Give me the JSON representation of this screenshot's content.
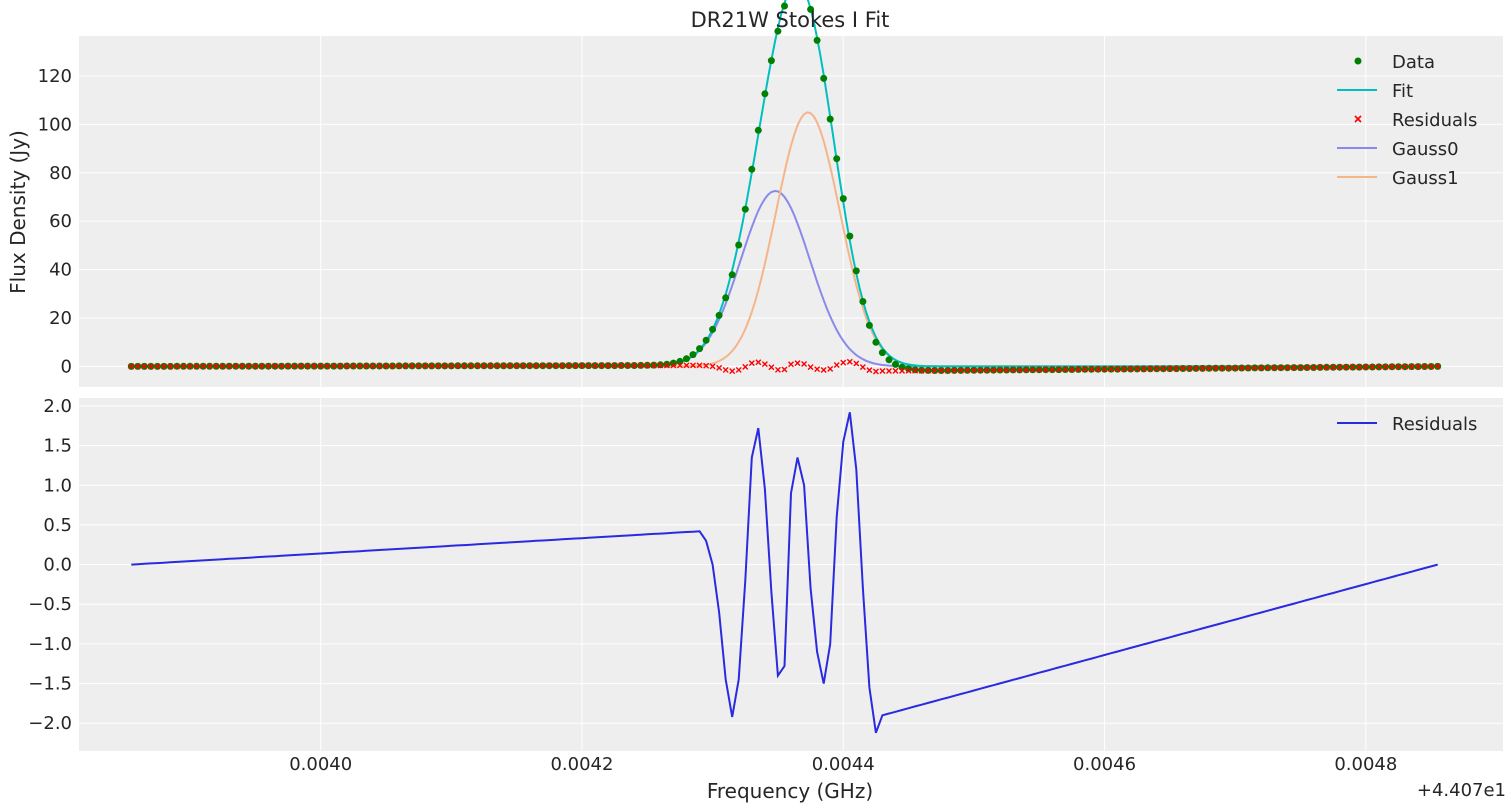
{
  "chart_data": [
    {
      "type": "line",
      "title": "DR21W Stokes I Fit",
      "xlabel": "",
      "ylabel": "Flux Density (Jy)",
      "x_offset_label": "+4.407e1",
      "xlim": [
        0.003815,
        0.004905
      ],
      "ylim": [
        -8.5,
        136.5
      ],
      "x_ticks": [
        0.004,
        0.0042,
        0.0044,
        0.0046,
        0.0048
      ],
      "x_tick_labels": [
        "0.0040",
        "0.0042",
        "0.0044",
        "0.0046",
        "0.0048"
      ],
      "y_ticks": [
        0,
        20,
        40,
        60,
        80,
        100,
        120
      ],
      "y_tick_labels": [
        "0",
        "20",
        "40",
        "60",
        "80",
        "100",
        "120"
      ],
      "grid": true,
      "legend_position": "top-right",
      "x_range": [
        0.003855,
        0.004855
      ],
      "series": [
        {
          "name": "Data",
          "style": "markers",
          "color": "#008000"
        },
        {
          "name": "Fit",
          "style": "line",
          "color": "#00bfbf"
        },
        {
          "name": "Residuals",
          "style": "x-markers",
          "color": "#ff0000"
        },
        {
          "name": "Gauss0",
          "style": "line",
          "color": "#8a8aeb",
          "amplitude": 72.5,
          "center": 0.004348,
          "sigma": 2.65e-05
        },
        {
          "name": "Gauss1",
          "style": "line",
          "color": "#f5b58a",
          "amplitude": 105,
          "center": 0.004373,
          "sigma": 2.45e-05
        }
      ]
    },
    {
      "type": "line",
      "title": "",
      "xlabel": "Frequency (GHz)",
      "ylabel": "",
      "x_offset_label": "+4.407e1",
      "xlim": [
        0.003815,
        0.004905
      ],
      "ylim": [
        -2.35,
        2.1
      ],
      "x_ticks": [
        0.004,
        0.0042,
        0.0044,
        0.0046,
        0.0048
      ],
      "x_tick_labels": [
        "0.0040",
        "0.0042",
        "0.0044",
        "0.0046",
        "0.0048"
      ],
      "y_ticks": [
        2.0,
        1.5,
        1.0,
        0.5,
        0.0,
        -0.5,
        -1.0,
        -1.5,
        -2.0
      ],
      "y_tick_labels": [
        "2.0",
        "1.5",
        "1.0",
        "0.5",
        "0.0",
        "−0.5",
        "−1.0",
        "−1.5",
        "−2.0"
      ],
      "grid": true,
      "legend_position": "top-right",
      "series": [
        {
          "name": "Residuals",
          "color": "#2a2ae0",
          "x": [
            0.003855,
            0.00429,
            0.004295,
            0.0043,
            0.004305,
            0.00431,
            0.004315,
            0.00432,
            0.004325,
            0.00433,
            0.004335,
            0.00434,
            0.004345,
            0.00435,
            0.004355,
            0.00436,
            0.004365,
            0.00437,
            0.004375,
            0.00438,
            0.004385,
            0.00439,
            0.004395,
            0.0044,
            0.004405,
            0.00441,
            0.004415,
            0.00442,
            0.004425,
            0.00443,
            0.004855
          ],
          "y": [
            0.0,
            0.42,
            0.3,
            0.0,
            -0.6,
            -1.45,
            -1.92,
            -1.45,
            -0.2,
            1.35,
            1.72,
            0.95,
            -0.35,
            -1.4,
            -1.28,
            0.9,
            1.35,
            1.0,
            -0.3,
            -1.1,
            -1.5,
            -1.0,
            0.6,
            1.55,
            1.92,
            1.2,
            -0.3,
            -1.55,
            -2.12,
            -1.9,
            0.0
          ]
        }
      ]
    }
  ]
}
